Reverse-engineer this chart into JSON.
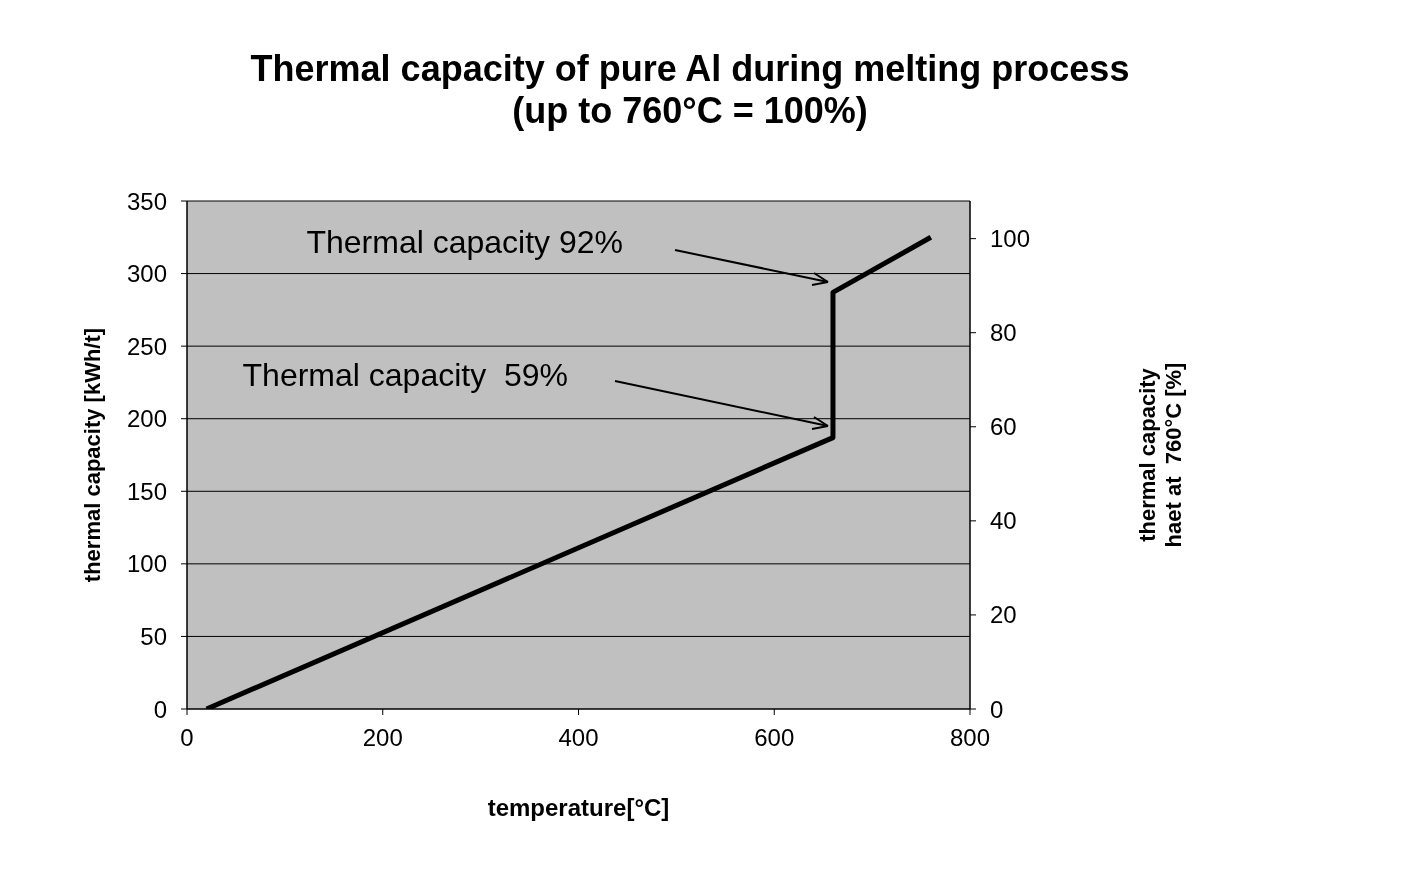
{
  "chart_data": {
    "type": "line",
    "title": "Thermal capacity of pure Al during melting process\n(up to 760°C = 100%)",
    "xlabel": "temperature[°C]",
    "ylabel": "thermal capacity [kWh/t]",
    "y2label": "thermal capacity\nhaet at  760°C [%]",
    "series": [
      {
        "color": "#000000",
        "x": [
          20,
          660,
          660,
          760
        ],
        "values": [
          0,
          187,
          287,
          325
        ]
      }
    ],
    "xlim": [
      0,
      800
    ],
    "xticks": [
      0,
      200,
      400,
      600,
      800
    ],
    "ylim": [
      0,
      350
    ],
    "yticks": [
      0,
      50,
      100,
      150,
      200,
      250,
      300,
      350
    ],
    "y2lim": [
      0,
      108
    ],
    "y2ticks": [
      0,
      20,
      40,
      60,
      80,
      100
    ],
    "grid": true,
    "marker": "none",
    "line_style": "solid",
    "annotations": [
      "Thermal capacity 92%",
      "Thermal capacity  59%"
    ]
  }
}
